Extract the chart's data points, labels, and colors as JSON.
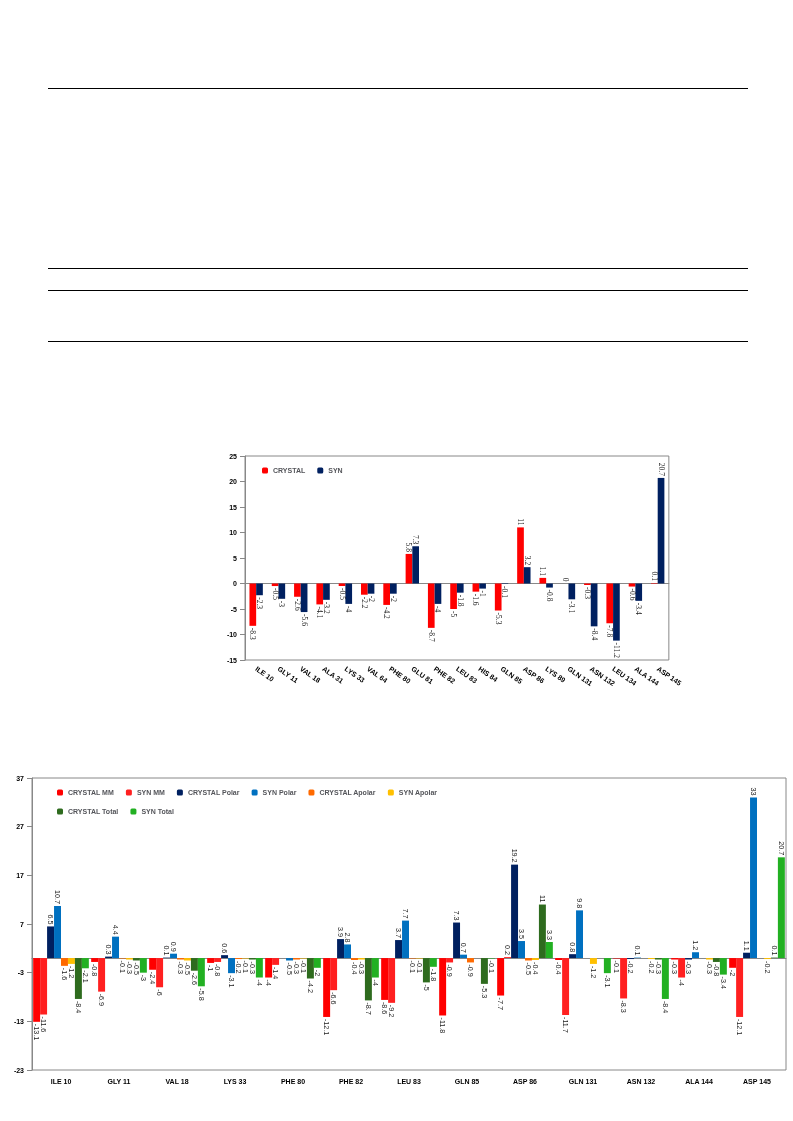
{
  "chart_data": [
    {
      "type": "bar",
      "categories": [
        "ILE 10",
        "GLY 11",
        "VAL 18",
        "ALA 31",
        "LYS 33",
        "VAL 64",
        "PHE 80",
        "GLU 81",
        "PHE 82",
        "LEU 83",
        "HIS 84",
        "GLN 85",
        "ASP 86",
        "LYS 89",
        "GLN 131",
        "ASN 132",
        "LEU 134",
        "ALA 144",
        "ASP 145"
      ],
      "series": [
        {
          "name": "CRYSTAL",
          "color": "#ff0000",
          "values": [
            -8.3,
            -0.5,
            -2.6,
            -4.1,
            -0.5,
            -2.2,
            -4.2,
            5.8,
            -8.7,
            -5,
            -1.6,
            -5.3,
            11,
            1.1,
            0,
            -0.3,
            -7.8,
            -0.6,
            0.1
          ]
        },
        {
          "name": "SYN",
          "color": "#002060",
          "values": [
            -2.3,
            -3,
            -5.6,
            -3.2,
            -4,
            -2,
            -2,
            7.3,
            -4,
            -1.8,
            -1,
            -0.1,
            3.2,
            -0.8,
            -3.1,
            -8.4,
            -11.2,
            -3.4,
            20.7
          ]
        }
      ],
      "ylim": [
        -15,
        25
      ],
      "yticks": [
        -15,
        -10,
        -5,
        0,
        5,
        10,
        15,
        20,
        25
      ],
      "legend": "top left",
      "data_labels": true
    },
    {
      "type": "bar",
      "categories": [
        "ILE 10",
        "GLY 11",
        "VAL 18",
        "LYS 33",
        "PHE 80",
        "PHE 82",
        "LEU 83",
        "GLN 85",
        "ASP 86",
        "GLN 131",
        "ASN 132",
        "ALA 144",
        "ASP 145"
      ],
      "series": [
        {
          "name": "CRYSTAL MM",
          "color": "#ff0000",
          "values": [
            -13.1,
            -0.8,
            -2.4,
            -1.0,
            -4.0,
            -12.1,
            -8.6,
            -11.8,
            -7.7,
            -0.4,
            -0.1,
            -0.3,
            -2.0
          ]
        },
        {
          "name": "SYN MM",
          "color": "#ff2020",
          "values": [
            -11.6,
            -6.9,
            -6.0,
            -0.8,
            -1.4,
            -6.6,
            -9.2,
            -0.9,
            0.2,
            -11.7,
            -8.3,
            -4.0,
            -12.1
          ]
        },
        {
          "name": "CRYSTAL Polar",
          "color": "#002060",
          "values": [
            6.5,
            0.3,
            0.1,
            0.6,
            null,
            3.9,
            3.7,
            7.3,
            19.2,
            0.8,
            -0.2,
            -0.3,
            1.1
          ]
        },
        {
          "name": "SYN Polar",
          "color": "#0070c0",
          "values": [
            10.7,
            4.4,
            0.9,
            -3.1,
            -0.5,
            2.8,
            7.7,
            0.7,
            3.5,
            9.8,
            0.1,
            1.2,
            33.0
          ]
        },
        {
          "name": "CRYSTAL Apolar",
          "color": "#ff6a00",
          "values": [
            -1.6,
            -0.1,
            -0.3,
            -0.2,
            -0.3,
            -0.4,
            -0.1,
            -0.9,
            -0.5,
            null,
            null,
            null,
            null
          ]
        },
        {
          "name": "SYN Apolar",
          "color": "#ffc000",
          "values": [
            -1.2,
            -0.3,
            -0.5,
            -0.1,
            -0.1,
            -0.3,
            -0.1,
            null,
            -0.4,
            -1.2,
            -0.2,
            -0.3,
            -0.2
          ]
        },
        {
          "name": "CRYSTAL Total",
          "color": "#2e6b1e",
          "values": [
            -8.4,
            -0.5,
            -2.6,
            -0.3,
            -4.2,
            -8.7,
            -5.0,
            -5.3,
            11.0,
            null,
            -0.3,
            -0.8,
            0.1
          ]
        },
        {
          "name": "SYN Total",
          "color": "#22b022",
          "values": [
            -2.1,
            -3.0,
            -5.8,
            -4.0,
            -2.0,
            -4.0,
            -1.8,
            -0.1,
            3.3,
            -3.1,
            -8.4,
            -3.4,
            20.7
          ]
        }
      ],
      "ylim": [
        -23,
        37
      ],
      "yticks": [
        -23,
        -13,
        -3,
        7,
        17,
        27,
        37
      ],
      "legend": "top",
      "data_labels": true
    }
  ]
}
